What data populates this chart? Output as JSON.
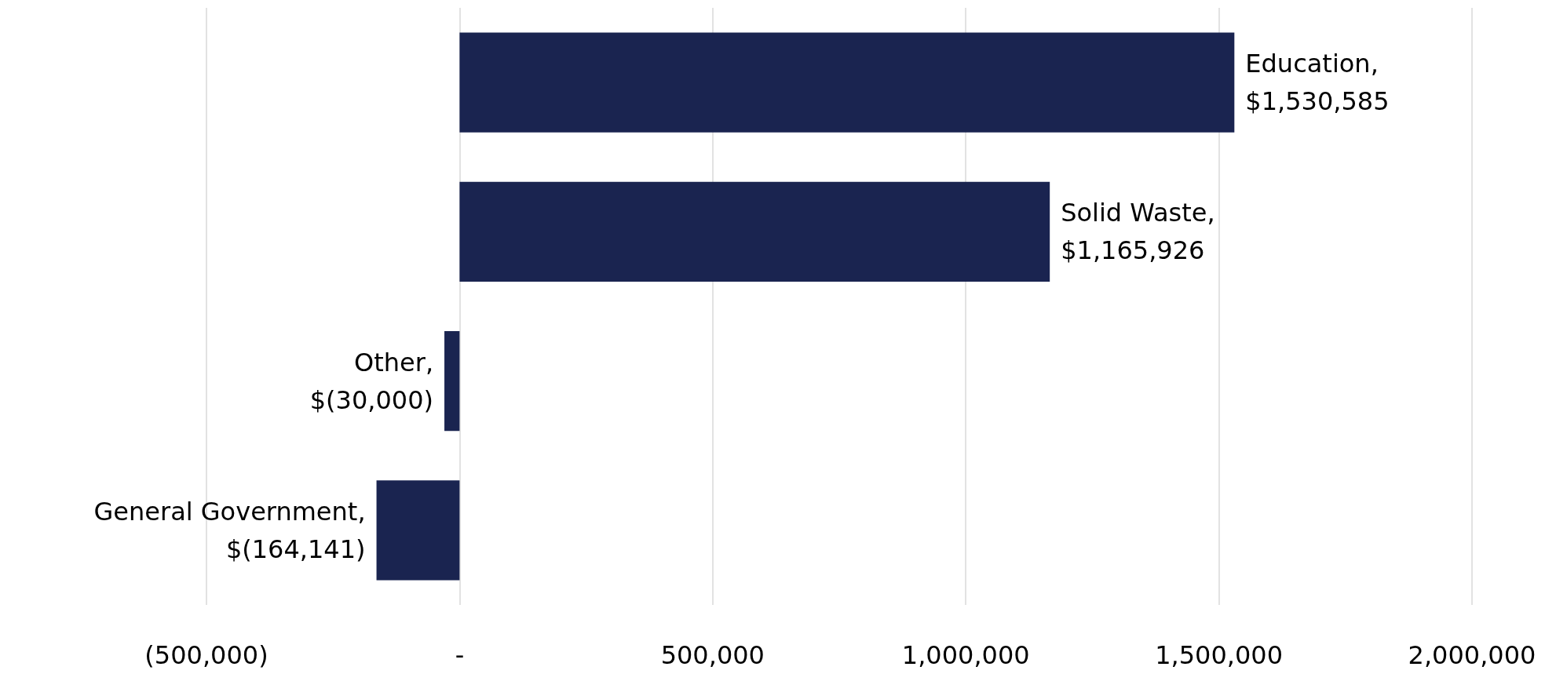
{
  "chart_data": {
    "type": "bar",
    "orientation": "horizontal",
    "categories": [
      null,
      null,
      null,
      null
    ],
    "values": [
      1530585,
      1165926,
      -30000,
      -164141
    ],
    "value_labels": [
      "Education,\n$1,530,585",
      "Solid Waste,\n$1,165,926",
      "Other,\n$(30,000)",
      "General Government,\n$(164,141)"
    ],
    "color": "#1a2450",
    "xlim": [
      -500000,
      2000000
    ],
    "xticks": [
      {
        "value": -500000,
        "label": "(500,000)"
      },
      {
        "value": 0,
        "label": "-"
      },
      {
        "value": 500000,
        "label": "500,000"
      },
      {
        "value": 1000000,
        "label": "1,000,000"
      },
      {
        "value": 1500000,
        "label": "1,500,000"
      },
      {
        "value": 2000000,
        "label": "2,000,000"
      }
    ],
    "grid": "x",
    "tick_labels": "x"
  }
}
